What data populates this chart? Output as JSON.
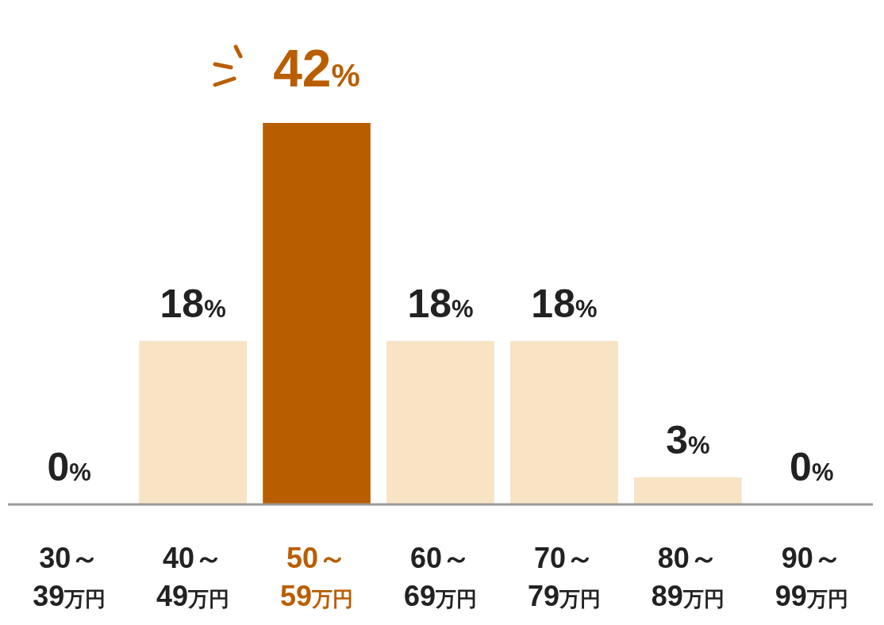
{
  "chart_data": {
    "type": "bar",
    "categories": [
      "30～\n39万円",
      "40～\n49万円",
      "50～\n59万円",
      "60～\n69万円",
      "70～\n79万円",
      "80～\n89万円",
      "90～\n99万円"
    ],
    "values": [
      0,
      18,
      42,
      18,
      18,
      3,
      0
    ],
    "colors": [
      "#f8e3c5",
      "#f8e3c5",
      "#b95e00",
      "#f8e3c5",
      "#f8e3c5",
      "#f8e3c5",
      "#f8e3c5"
    ],
    "value_labels": [
      "0%",
      "18%",
      "42%",
      "18%",
      "18%",
      "3%",
      "0%"
    ]
  }
}
